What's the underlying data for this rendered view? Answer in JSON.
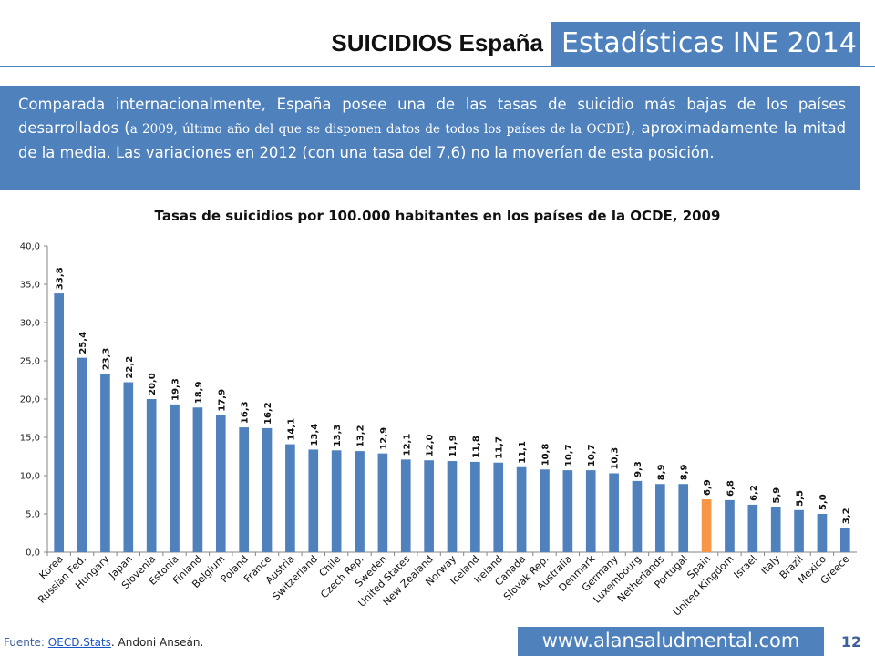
{
  "header": {
    "title": "SUICIDIOS España",
    "subtitle": "Estadísticas INE 2014"
  },
  "intro": {
    "part1": "Comparada internacionalmente, España posee una de las tasas de suicidio más bajas de los países desarrollados (",
    "part2": "a 2009, último año del que se disponen datos de todos los países de la OCDE",
    "part3": "), aproximadamente la mitad de la media. Las variaciones en 2012 (con una tasa del 7,6) no la moverían de esta posición."
  },
  "footer": {
    "source_label": "Fuente: ",
    "source_link": "OECD.Stats",
    "source_author": ". Andoni Anseán.",
    "url": "www.alansaludmental.com",
    "page_number": "12"
  },
  "colors": {
    "bar": "#4f81bd",
    "highlight": "#f79646",
    "accent": "#4f81bd"
  },
  "chart_data": {
    "type": "bar",
    "title": "Tasas de suicidios por 100.000 habitantes en los países de la OCDE, 2009",
    "xlabel": "",
    "ylabel": "",
    "ylim": [
      0,
      40
    ],
    "yticks": [
      0,
      5,
      10,
      15,
      20,
      25,
      30,
      35,
      40
    ],
    "ytick_labels": [
      "0,0",
      "5,0",
      "10,0",
      "15,0",
      "20,0",
      "25,0",
      "30,0",
      "35,0",
      "40,0"
    ],
    "grid": false,
    "highlight_category": "Spain",
    "categories": [
      "Korea",
      "Russian Fed.",
      "Hungary",
      "Japan",
      "Slovenia",
      "Estonia",
      "Finland",
      "Belgium",
      "Poland",
      "France",
      "Austria",
      "Switzerland",
      "Chile",
      "Czech Rep.",
      "Sweden",
      "United States",
      "New Zealand",
      "Norway",
      "Iceland",
      "Ireland",
      "Canada",
      "Slovak Rep.",
      "Australia",
      "Denmark",
      "Germany",
      "Luxembourg",
      "Netherlands",
      "Portugal",
      "Spain",
      "United Kingdom",
      "Israel",
      "Italy",
      "Brazil",
      "Mexico",
      "Greece"
    ],
    "values": [
      33.8,
      25.4,
      23.3,
      22.2,
      20.0,
      19.3,
      18.9,
      17.9,
      16.3,
      16.2,
      14.1,
      13.4,
      13.3,
      13.2,
      12.9,
      12.1,
      12.0,
      11.9,
      11.8,
      11.7,
      11.1,
      10.8,
      10.7,
      10.7,
      10.3,
      9.3,
      8.9,
      8.9,
      6.9,
      6.8,
      6.2,
      5.9,
      5.5,
      5.0,
      3.2
    ],
    "value_labels": [
      "33,8",
      "25,4",
      "23,3",
      "22,2",
      "20,0",
      "19,3",
      "18,9",
      "17,9",
      "16,3",
      "16,2",
      "14,1",
      "13,4",
      "13,3",
      "13,2",
      "12,9",
      "12,1",
      "12,0",
      "11,9",
      "11,8",
      "11,7",
      "11,1",
      "10,8",
      "10,7",
      "10,7",
      "10,3",
      "9,3",
      "8,9",
      "8,9",
      "6,9",
      "6,8",
      "6,2",
      "5,9",
      "5,5",
      "5,0",
      "3,2"
    ]
  }
}
